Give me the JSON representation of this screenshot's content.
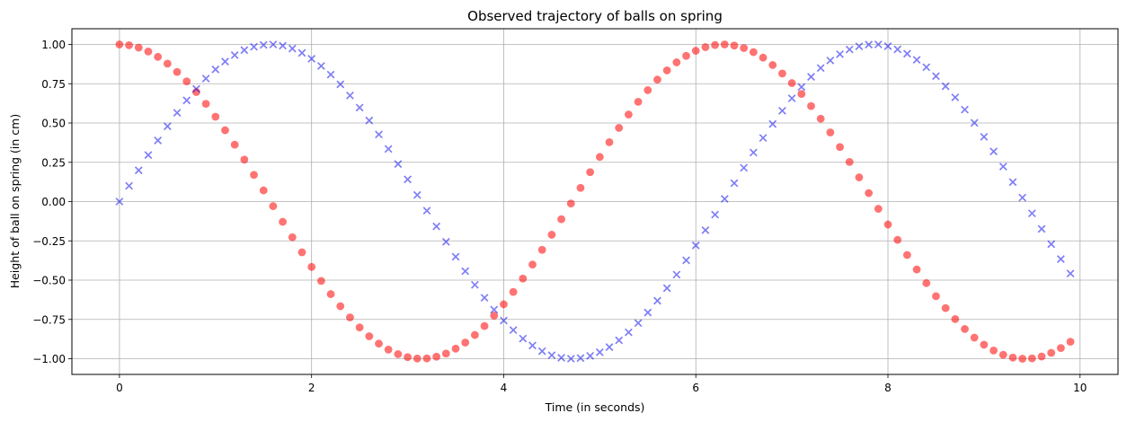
{
  "chart_data": {
    "type": "scatter",
    "title": "Observed trajectory of balls on spring",
    "xlabel": "Time (in seconds)",
    "ylabel": "Height of ball on spring (in cm)",
    "xlim": [
      -0.495,
      10.395
    ],
    "ylim": [
      -1.1,
      1.1
    ],
    "xticks": [
      0,
      2,
      4,
      6,
      8,
      10
    ],
    "yticks": [
      -1.0,
      -0.75,
      -0.5,
      -0.25,
      0.0,
      0.25,
      0.5,
      0.75,
      1.0
    ],
    "xtick_labels": [
      "0",
      "2",
      "4",
      "6",
      "8",
      "10"
    ],
    "ytick_labels": [
      "−1.00",
      "−0.75",
      "−0.50",
      "−0.25",
      "0.00",
      "0.25",
      "0.50",
      "0.75",
      "1.00"
    ],
    "grid": true,
    "x": [
      0.0,
      0.1,
      0.2,
      0.3,
      0.4,
      0.5,
      0.6,
      0.7,
      0.8,
      0.9,
      1.0,
      1.1,
      1.2,
      1.3,
      1.4,
      1.5,
      1.6,
      1.7,
      1.8,
      1.9,
      2.0,
      2.1,
      2.2,
      2.3,
      2.4,
      2.5,
      2.6,
      2.7,
      2.8,
      2.9,
      3.0,
      3.1,
      3.2,
      3.3,
      3.4,
      3.5,
      3.6,
      3.7,
      3.8,
      3.9,
      4.0,
      4.1,
      4.2,
      4.3,
      4.4,
      4.5,
      4.6,
      4.7,
      4.8,
      4.9,
      5.0,
      5.1,
      5.2,
      5.3,
      5.4,
      5.5,
      5.6,
      5.7,
      5.8,
      5.9,
      6.0,
      6.1,
      6.2,
      6.3,
      6.4,
      6.5,
      6.6,
      6.7,
      6.8,
      6.9,
      7.0,
      7.1,
      7.2,
      7.3,
      7.4,
      7.5,
      7.6,
      7.7,
      7.8,
      7.9,
      8.0,
      8.1,
      8.2,
      8.3,
      8.4,
      8.5,
      8.6,
      8.7,
      8.8,
      8.9,
      9.0,
      9.1,
      9.2,
      9.3,
      9.4,
      9.5,
      9.6,
      9.7,
      9.8,
      9.9
    ],
    "series": [
      {
        "marker": "circle",
        "color": "#ff0000",
        "alpha": 0.55,
        "values": [
          1.0,
          0.995,
          0.98,
          0.955,
          0.921,
          0.878,
          0.825,
          0.765,
          0.697,
          0.622,
          0.54,
          0.454,
          0.362,
          0.267,
          0.17,
          0.071,
          -0.029,
          -0.129,
          -0.227,
          -0.323,
          -0.416,
          -0.505,
          -0.589,
          -0.666,
          -0.737,
          -0.801,
          -0.857,
          -0.904,
          -0.942,
          -0.971,
          -0.99,
          -0.999,
          -0.998,
          -0.987,
          -0.967,
          -0.936,
          -0.897,
          -0.849,
          -0.792,
          -0.726,
          -0.654,
          -0.575,
          -0.49,
          -0.401,
          -0.307,
          -0.211,
          -0.112,
          -0.012,
          0.087,
          0.187,
          0.284,
          0.378,
          0.469,
          0.554,
          0.635,
          0.709,
          0.776,
          0.835,
          0.886,
          0.927,
          0.96,
          0.983,
          0.996,
          1.0,
          0.993,
          0.977,
          0.951,
          0.916,
          0.869,
          0.815,
          0.754,
          0.685,
          0.608,
          0.527,
          0.44,
          0.347,
          0.252,
          0.154,
          0.054,
          -0.046,
          -0.146,
          -0.244,
          -0.34,
          -0.432,
          -0.519,
          -0.602,
          -0.678,
          -0.748,
          -0.811,
          -0.866,
          -0.911,
          -0.948,
          -0.975,
          -0.993,
          -1.0,
          -0.998,
          -0.986,
          -0.963,
          -0.932,
          -0.892
        ]
      },
      {
        "marker": "x",
        "color": "#0000ee",
        "alpha": 0.5,
        "values": [
          0.0,
          0.1,
          0.199,
          0.296,
          0.389,
          0.479,
          0.565,
          0.644,
          0.717,
          0.783,
          0.841,
          0.891,
          0.932,
          0.964,
          0.985,
          0.997,
          1.0,
          0.992,
          0.974,
          0.946,
          0.909,
          0.863,
          0.808,
          0.746,
          0.675,
          0.598,
          0.516,
          0.427,
          0.335,
          0.239,
          0.141,
          0.042,
          -0.058,
          -0.158,
          -0.256,
          -0.351,
          -0.443,
          -0.53,
          -0.612,
          -0.688,
          -0.757,
          -0.818,
          -0.872,
          -0.916,
          -0.952,
          -0.978,
          -0.994,
          -1.0,
          -0.996,
          -0.982,
          -0.959,
          -0.926,
          -0.883,
          -0.832,
          -0.773,
          -0.706,
          -0.631,
          -0.551,
          -0.465,
          -0.374,
          -0.279,
          -0.182,
          -0.083,
          0.017,
          0.117,
          0.215,
          0.312,
          0.405,
          0.494,
          0.578,
          0.657,
          0.729,
          0.794,
          0.85,
          0.898,
          0.938,
          0.968,
          0.988,
          0.999,
          1.0,
          0.989,
          0.969,
          0.941,
          0.902,
          0.855,
          0.798,
          0.734,
          0.663,
          0.585,
          0.501,
          0.412,
          0.319,
          0.223,
          0.124,
          0.025,
          -0.075,
          -0.174,
          -0.271,
          -0.366,
          -0.458
        ]
      }
    ]
  }
}
